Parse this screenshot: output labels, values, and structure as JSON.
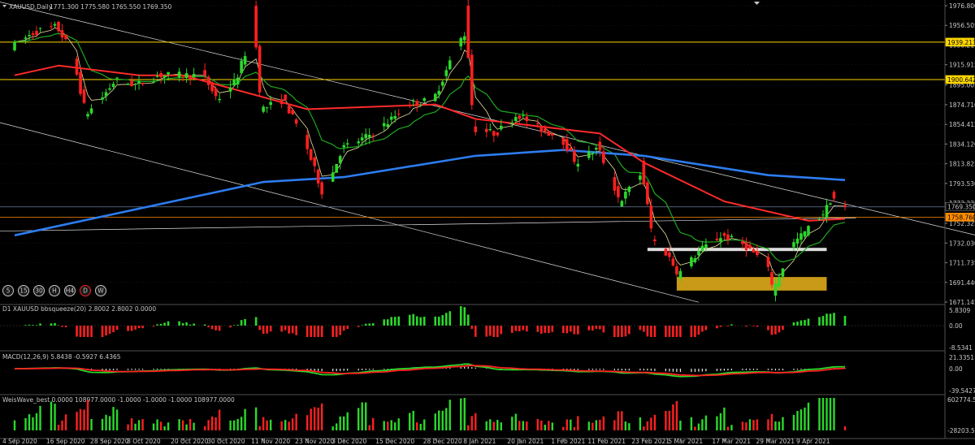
{
  "colors": {
    "background": "#000000",
    "bull": "#2bd92b",
    "bear": "#ff2020",
    "ma_fast": "#e8e0a0",
    "ma_mid": "#1fa81f",
    "ma_slow": "#ff2a2a",
    "ma_long": "#2d7df0",
    "support_zone": "#c89a18",
    "hline": "#ffd700",
    "current_price_line": "#6a7f9a",
    "macd_line": "#2bd92b",
    "signal_line": "#ff2020",
    "grid": "#303030",
    "text": "#c8c8c8"
  },
  "main_panel": {
    "title": "XAUUSD,Daily",
    "ohlc": "1771.300 1775.580 1765.550 1769.350",
    "timeframes": [
      "5",
      "15",
      "30",
      "H",
      "H4",
      "D",
      "W"
    ],
    "active_timeframe": "D",
    "y_ticks": [
      "1976.800",
      "1956.505",
      "1936.210",
      "1915.915",
      "1895.005",
      "1874.710",
      "1854.415",
      "1834.120",
      "1813.825",
      "1793.530",
      "1773.235",
      "1752.325",
      "1732.030",
      "1711.735",
      "1691.440",
      "1671.145"
    ],
    "price_labels": [
      {
        "value": "1939.213",
        "color": "#ffd700",
        "text_color": "#000000"
      },
      {
        "value": "1900.642",
        "color": "#ffd700",
        "text_color": "#000000"
      },
      {
        "value": "1769.350",
        "color": "#000000",
        "text_color": "#c8c8c8"
      },
      {
        "value": "1758.760",
        "color": "#ff8c00",
        "text_color": "#000000"
      }
    ]
  },
  "bbsqueeze_panel": {
    "title": "D1 XAUUSD bbsqueeze(20) 2.8002 2.8002 0.0000",
    "y_ticks": [
      "5.8309",
      "0.00",
      "-8.5341"
    ]
  },
  "macd_panel": {
    "title": "MACD(12,26,9) 5.8438 -0.5927 6.4365",
    "y_ticks": [
      "21.3351",
      "0.00",
      "-39.5427"
    ]
  },
  "weiswave_panel": {
    "title": "WeisWave_best 0.0000 108977.0000 -1.0000 -1.0000 -1.0000 108977.0000",
    "y_ticks": [
      "602774.55",
      "-28203.55"
    ]
  },
  "x_ticks": [
    "4 Sep 2020",
    "16 Sep 2020",
    "28 Sep 2020",
    "8 Oct 2020",
    "20 Oct 2020",
    "30 Oct 2020",
    "11 Nov 2020",
    "23 Nov 2020",
    "3 Dec 2020",
    "15 Dec 2020",
    "28 Dec 2020",
    "8 Jan 2021",
    "20 Jan 2021",
    "1 Feb 2021",
    "11 Feb 2021",
    "23 Feb 2021",
    "5 Mar 2021",
    "17 Mar 2021",
    "29 Mar 2021",
    "9 Apr 2021"
  ],
  "chart_data": {
    "type": "candlestick",
    "symbol": "XAUUSD",
    "timeframe": "Daily",
    "ylim": [
      1671.145,
      1976.8
    ],
    "price_path": [
      [
        "4 Sep 2020",
        1935
      ],
      [
        "10 Sep 2020",
        1950
      ],
      [
        "16 Sep 2020",
        1955
      ],
      [
        "20 Sep 2020",
        1930
      ],
      [
        "24 Sep 2020",
        1865
      ],
      [
        "28 Sep 2020",
        1880
      ],
      [
        "2 Oct 2020",
        1900
      ],
      [
        "8 Oct 2020",
        1895
      ],
      [
        "14 Oct 2020",
        1905
      ],
      [
        "20 Oct 2020",
        1905
      ],
      [
        "26 Oct 2020",
        1905
      ],
      [
        "30 Oct 2020",
        1880
      ],
      [
        "4 Nov 2020",
        1900
      ],
      [
        "9 Nov 2020",
        1955
      ],
      [
        "11 Nov 2020",
        1870
      ],
      [
        "17 Nov 2020",
        1880
      ],
      [
        "23 Nov 2020",
        1835
      ],
      [
        "28 Nov 2020",
        1780
      ],
      [
        "3 Dec 2020",
        1830
      ],
      [
        "9 Dec 2020",
        1840
      ],
      [
        "15 Dec 2020",
        1855
      ],
      [
        "21 Dec 2020",
        1875
      ],
      [
        "28 Dec 2020",
        1880
      ],
      [
        "4 Jan 2021",
        1940
      ],
      [
        "6 Jan 2021",
        1950
      ],
      [
        "8 Jan 2021",
        1850
      ],
      [
        "14 Jan 2021",
        1845
      ],
      [
        "20 Jan 2021",
        1865
      ],
      [
        "26 Jan 2021",
        1850
      ],
      [
        "1 Feb 2021",
        1840
      ],
      [
        "5 Feb 2021",
        1815
      ],
      [
        "11 Feb 2021",
        1830
      ],
      [
        "17 Feb 2021",
        1775
      ],
      [
        "23 Feb 2021",
        1805
      ],
      [
        "26 Feb 2021",
        1735
      ],
      [
        "2 Mar 2021",
        1720
      ],
      [
        "5 Mar 2021",
        1700
      ],
      [
        "11 Mar 2021",
        1725
      ],
      [
        "17 Mar 2021",
        1740
      ],
      [
        "23 Mar 2021",
        1730
      ],
      [
        "29 Mar 2021",
        1710
      ],
      [
        "31 Mar 2021",
        1685
      ],
      [
        "5 Apr 2021",
        1730
      ],
      [
        "9 Apr 2021",
        1745
      ],
      [
        "14 Apr 2021",
        1765
      ],
      [
        "16 Apr 2021",
        1780
      ],
      [
        "19 Apr 2021",
        1769.35
      ]
    ],
    "last_candle": {
      "open": 1771.3,
      "high": 1775.58,
      "low": 1765.55,
      "close": 1769.35
    },
    "horizontal_levels": [
      1939.213,
      1900.642
    ],
    "current_price": 1769.35,
    "orange_level": 1758.76,
    "support_line": 1725,
    "support_zone": [
      1683,
      1697
    ],
    "moving_averages": [
      {
        "color": "long-blue",
        "points": [
          [
            "4 Sep 2020",
            1740
          ],
          [
            "11 Nov 2020",
            1795
          ],
          [
            "3 Dec 2020",
            1800
          ],
          [
            "8 Jan 2021",
            1822
          ],
          [
            "1 Feb 2021",
            1828
          ],
          [
            "23 Feb 2021",
            1822
          ],
          [
            "29 Mar 2021",
            1802
          ],
          [
            "19 Apr 2021",
            1797
          ]
        ]
      },
      {
        "color": "red",
        "points": [
          [
            "4 Sep 2020",
            1905
          ],
          [
            "16 Sep 2020",
            1915
          ],
          [
            "8 Oct 2020",
            1905
          ],
          [
            "20 Oct 2020",
            1905
          ],
          [
            "23 Nov 2020",
            1870
          ],
          [
            "28 Dec 2020",
            1875
          ],
          [
            "8 Jan 2021",
            1860
          ],
          [
            "11 Feb 2021",
            1845
          ],
          [
            "23 Feb 2021",
            1815
          ],
          [
            "17 Mar 2021",
            1775
          ],
          [
            "9 Apr 2021",
            1755
          ],
          [
            "19 Apr 2021",
            1757
          ]
        ]
      }
    ]
  }
}
